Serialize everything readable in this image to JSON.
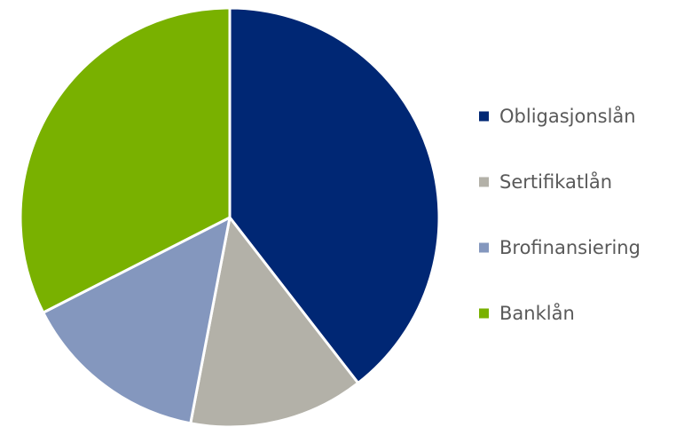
{
  "chart_data": {
    "type": "pie",
    "categories": [
      "Obligasjonslån",
      "Sertifikatlån",
      "Brofinansiering",
      "Banklån"
    ],
    "values": [
      39.5,
      13.5,
      14.5,
      32.5
    ],
    "unit": "percent",
    "colors": [
      "#002774",
      "#b3b1a8",
      "#8497be",
      "#79b100"
    ],
    "start_angle_deg": 0,
    "direction": "clockwise",
    "legend_placement": "right"
  }
}
